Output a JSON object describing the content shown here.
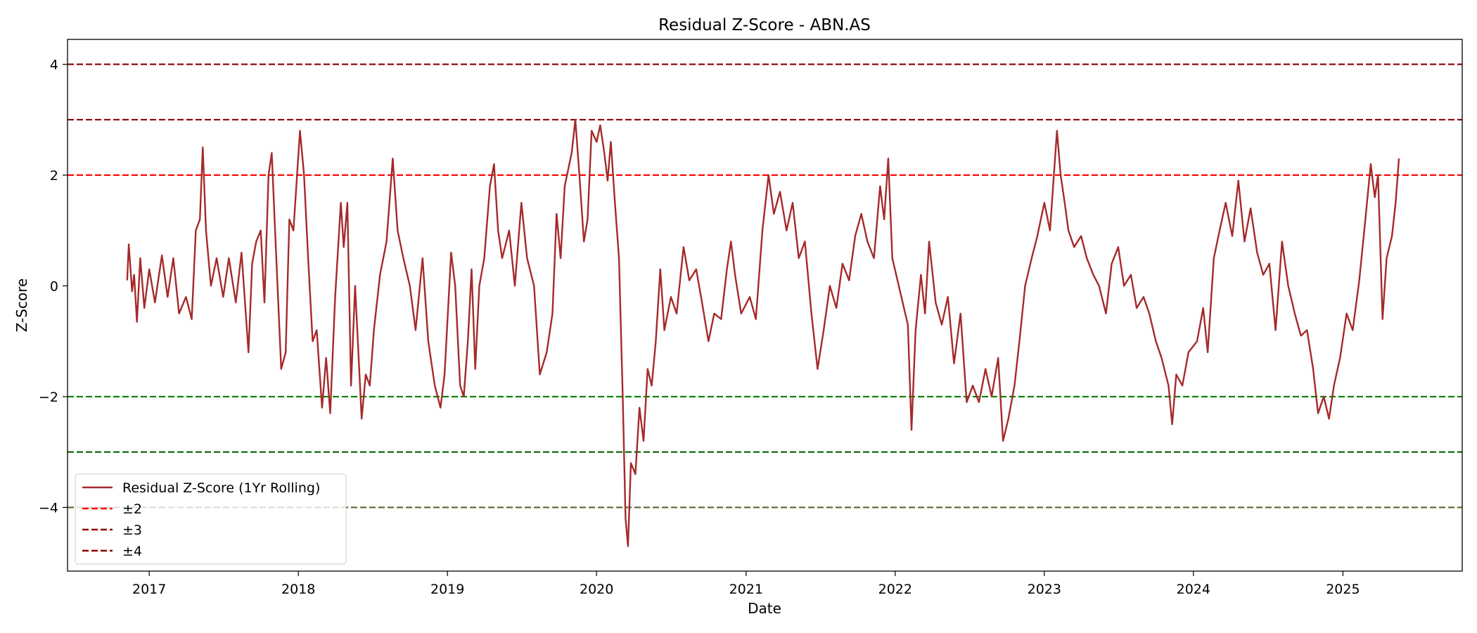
{
  "chart_data": {
    "type": "line",
    "title": "Residual Z-Score - ABN.AS",
    "xlabel": "Date",
    "ylabel": "Z-Score",
    "xlim": [
      "2016-06-15",
      "2025-10-20"
    ],
    "ylim": [
      -5.15,
      4.45
    ],
    "xticks": [
      {
        "date": "2017-01-01",
        "label": "2017"
      },
      {
        "date": "2018-01-01",
        "label": "2018"
      },
      {
        "date": "2019-01-01",
        "label": "2019"
      },
      {
        "date": "2020-01-01",
        "label": "2020"
      },
      {
        "date": "2021-01-01",
        "label": "2021"
      },
      {
        "date": "2022-01-01",
        "label": "2022"
      },
      {
        "date": "2023-01-01",
        "label": "2023"
      },
      {
        "date": "2024-01-01",
        "label": "2024"
      },
      {
        "date": "2025-01-01",
        "label": "2025"
      }
    ],
    "yticks": [
      {
        "value": 4,
        "label": "4"
      },
      {
        "value": 2,
        "label": "2"
      },
      {
        "value": 0,
        "label": "0"
      },
      {
        "value": -2,
        "label": "−2"
      },
      {
        "value": -4,
        "label": "−4"
      }
    ],
    "grid": false,
    "legend_placement": "lower left",
    "reference_lines": [
      {
        "y": 4,
        "color": "#8b0000"
      },
      {
        "y": 3,
        "color": "#8b0000"
      },
      {
        "y": 2,
        "color": "#ff0000"
      },
      {
        "y": -2,
        "color": "#008000"
      },
      {
        "y": -3,
        "color": "#006400"
      },
      {
        "y": -4,
        "color": "#556b2f"
      }
    ],
    "legend": [
      {
        "label": "Residual Z-Score (1Yr Rolling)",
        "color": "#a52a2a",
        "style": "solid"
      },
      {
        "label": "±2",
        "color": "#ff0000",
        "style": "dashed"
      },
      {
        "label": "±3",
        "color": "#8b0000",
        "style": "dashed"
      },
      {
        "label": "±4",
        "color": "#8b0000",
        "style": "dashed"
      }
    ],
    "series": [
      {
        "name": "Residual Z-Score (1Yr Rolling)",
        "color": "#a52a2a",
        "points": [
          [
            "2016-11-08",
            0.1
          ],
          [
            "2016-11-12",
            0.75
          ],
          [
            "2016-11-20",
            -0.1
          ],
          [
            "2016-11-25",
            0.2
          ],
          [
            "2016-12-02",
            -0.65
          ],
          [
            "2016-12-10",
            0.5
          ],
          [
            "2016-12-20",
            -0.4
          ],
          [
            "2017-01-01",
            0.3
          ],
          [
            "2017-01-15",
            -0.3
          ],
          [
            "2017-02-01",
            0.55
          ],
          [
            "2017-02-15",
            -0.2
          ],
          [
            "2017-03-01",
            0.5
          ],
          [
            "2017-03-15",
            -0.5
          ],
          [
            "2017-04-01",
            -0.2
          ],
          [
            "2017-04-15",
            -0.6
          ],
          [
            "2017-04-25",
            1.0
          ],
          [
            "2017-05-05",
            1.2
          ],
          [
            "2017-05-12",
            2.5
          ],
          [
            "2017-05-20",
            1.0
          ],
          [
            "2017-06-01",
            0.0
          ],
          [
            "2017-06-15",
            0.5
          ],
          [
            "2017-07-01",
            -0.2
          ],
          [
            "2017-07-15",
            0.5
          ],
          [
            "2017-08-01",
            -0.3
          ],
          [
            "2017-08-15",
            0.6
          ],
          [
            "2017-09-01",
            -1.2
          ],
          [
            "2017-09-10",
            0.4
          ],
          [
            "2017-09-20",
            0.8
          ],
          [
            "2017-10-01",
            1.0
          ],
          [
            "2017-10-10",
            -0.3
          ],
          [
            "2017-10-20",
            2.0
          ],
          [
            "2017-10-28",
            2.4
          ],
          [
            "2017-11-05",
            1.0
          ],
          [
            "2017-11-20",
            -1.5
          ],
          [
            "2017-12-01",
            -1.2
          ],
          [
            "2017-12-10",
            1.2
          ],
          [
            "2017-12-20",
            1.0
          ],
          [
            "2018-01-05",
            2.8
          ],
          [
            "2018-01-15",
            2.0
          ],
          [
            "2018-01-25",
            0.5
          ],
          [
            "2018-02-05",
            -1.0
          ],
          [
            "2018-02-15",
            -0.8
          ],
          [
            "2018-02-28",
            -2.2
          ],
          [
            "2018-03-10",
            -1.3
          ],
          [
            "2018-03-20",
            -2.3
          ],
          [
            "2018-04-01",
            -0.2
          ],
          [
            "2018-04-15",
            1.5
          ],
          [
            "2018-04-22",
            0.7
          ],
          [
            "2018-05-01",
            1.5
          ],
          [
            "2018-05-10",
            -1.8
          ],
          [
            "2018-05-20",
            0.0
          ],
          [
            "2018-06-05",
            -2.4
          ],
          [
            "2018-06-15",
            -1.6
          ],
          [
            "2018-06-25",
            -1.8
          ],
          [
            "2018-07-05",
            -0.8
          ],
          [
            "2018-07-20",
            0.2
          ],
          [
            "2018-08-05",
            0.8
          ],
          [
            "2018-08-20",
            2.3
          ],
          [
            "2018-09-01",
            1.0
          ],
          [
            "2018-09-15",
            0.5
          ],
          [
            "2018-10-01",
            0.0
          ],
          [
            "2018-10-15",
            -0.8
          ],
          [
            "2018-11-01",
            0.5
          ],
          [
            "2018-11-15",
            -1.0
          ],
          [
            "2018-12-01",
            -1.8
          ],
          [
            "2018-12-15",
            -2.2
          ],
          [
            "2018-12-25",
            -1.6
          ],
          [
            "2019-01-10",
            0.6
          ],
          [
            "2019-01-20",
            0.0
          ],
          [
            "2019-02-01",
            -1.8
          ],
          [
            "2019-02-10",
            -2.0
          ],
          [
            "2019-02-20",
            -1.0
          ],
          [
            "2019-03-01",
            0.3
          ],
          [
            "2019-03-10",
            -1.5
          ],
          [
            "2019-03-20",
            0.0
          ],
          [
            "2019-04-01",
            0.5
          ],
          [
            "2019-04-15",
            1.8
          ],
          [
            "2019-04-25",
            2.2
          ],
          [
            "2019-05-05",
            1.0
          ],
          [
            "2019-05-15",
            0.5
          ],
          [
            "2019-06-01",
            1.0
          ],
          [
            "2019-06-15",
            0.0
          ],
          [
            "2019-07-01",
            1.5
          ],
          [
            "2019-07-15",
            0.5
          ],
          [
            "2019-08-01",
            0.0
          ],
          [
            "2019-08-15",
            -1.6
          ],
          [
            "2019-09-01",
            -1.2
          ],
          [
            "2019-09-15",
            -0.5
          ],
          [
            "2019-09-25",
            1.3
          ],
          [
            "2019-10-05",
            0.5
          ],
          [
            "2019-10-15",
            1.8
          ],
          [
            "2019-11-01",
            2.4
          ],
          [
            "2019-11-10",
            3.0
          ],
          [
            "2019-11-20",
            2.0
          ],
          [
            "2019-12-01",
            0.8
          ],
          [
            "2019-12-10",
            1.2
          ],
          [
            "2019-12-20",
            2.8
          ],
          [
            "2020-01-01",
            2.6
          ],
          [
            "2020-01-10",
            2.9
          ],
          [
            "2020-01-20",
            2.4
          ],
          [
            "2020-01-28",
            1.9
          ],
          [
            "2020-02-05",
            2.6
          ],
          [
            "2020-02-15",
            1.5
          ],
          [
            "2020-02-25",
            0.5
          ],
          [
            "2020-03-05",
            -2.0
          ],
          [
            "2020-03-12",
            -4.2
          ],
          [
            "2020-03-18",
            -4.7
          ],
          [
            "2020-03-25",
            -3.2
          ],
          [
            "2020-04-05",
            -3.4
          ],
          [
            "2020-04-15",
            -2.2
          ],
          [
            "2020-04-25",
            -2.8
          ],
          [
            "2020-05-05",
            -1.5
          ],
          [
            "2020-05-15",
            -1.8
          ],
          [
            "2020-05-25",
            -1.0
          ],
          [
            "2020-06-05",
            0.3
          ],
          [
            "2020-06-15",
            -0.8
          ],
          [
            "2020-07-01",
            -0.2
          ],
          [
            "2020-07-15",
            -0.5
          ],
          [
            "2020-08-01",
            0.7
          ],
          [
            "2020-08-15",
            0.1
          ],
          [
            "2020-09-01",
            0.3
          ],
          [
            "2020-09-15",
            -0.3
          ],
          [
            "2020-10-01",
            -1.0
          ],
          [
            "2020-10-15",
            -0.5
          ],
          [
            "2020-11-01",
            -0.6
          ],
          [
            "2020-11-15",
            0.3
          ],
          [
            "2020-11-25",
            0.8
          ],
          [
            "2020-12-05",
            0.2
          ],
          [
            "2020-12-20",
            -0.5
          ],
          [
            "2021-01-10",
            -0.2
          ],
          [
            "2021-01-25",
            -0.6
          ],
          [
            "2021-02-10",
            1.0
          ],
          [
            "2021-02-25",
            2.0
          ],
          [
            "2021-03-10",
            1.3
          ],
          [
            "2021-03-25",
            1.7
          ],
          [
            "2021-04-10",
            1.0
          ],
          [
            "2021-04-25",
            1.5
          ],
          [
            "2021-05-10",
            0.5
          ],
          [
            "2021-05-25",
            0.8
          ],
          [
            "2021-06-10",
            -0.5
          ],
          [
            "2021-06-25",
            -1.5
          ],
          [
            "2021-07-10",
            -0.8
          ],
          [
            "2021-07-25",
            0.0
          ],
          [
            "2021-08-10",
            -0.4
          ],
          [
            "2021-08-25",
            0.4
          ],
          [
            "2021-09-10",
            0.1
          ],
          [
            "2021-09-25",
            0.9
          ],
          [
            "2021-10-10",
            1.3
          ],
          [
            "2021-10-25",
            0.8
          ],
          [
            "2021-11-10",
            0.5
          ],
          [
            "2021-11-25",
            1.8
          ],
          [
            "2021-12-05",
            1.2
          ],
          [
            "2021-12-15",
            2.3
          ],
          [
            "2021-12-25",
            0.5
          ],
          [
            "2022-02-01",
            -0.7
          ],
          [
            "2022-02-10",
            -2.6
          ],
          [
            "2022-02-20",
            -0.8
          ],
          [
            "2022-03-05",
            0.2
          ],
          [
            "2022-03-15",
            -0.5
          ],
          [
            "2022-03-25",
            0.8
          ],
          [
            "2022-04-10",
            -0.3
          ],
          [
            "2022-04-25",
            -0.7
          ],
          [
            "2022-05-10",
            -0.2
          ],
          [
            "2022-05-25",
            -1.4
          ],
          [
            "2022-06-10",
            -0.5
          ],
          [
            "2022-06-25",
            -2.1
          ],
          [
            "2022-07-10",
            -1.8
          ],
          [
            "2022-07-25",
            -2.1
          ],
          [
            "2022-08-10",
            -1.5
          ],
          [
            "2022-08-25",
            -2.0
          ],
          [
            "2022-09-10",
            -1.3
          ],
          [
            "2022-09-22",
            -2.8
          ],
          [
            "2022-10-05",
            -2.4
          ],
          [
            "2022-10-20",
            -1.8
          ],
          [
            "2022-11-01",
            -1.0
          ],
          [
            "2022-11-15",
            0.0
          ],
          [
            "2022-12-01",
            0.5
          ],
          [
            "2022-12-15",
            0.9
          ],
          [
            "2023-01-01",
            1.5
          ],
          [
            "2023-01-15",
            1.0
          ],
          [
            "2023-02-01",
            2.8
          ],
          [
            "2023-02-10",
            2.0
          ],
          [
            "2023-02-20",
            1.5
          ],
          [
            "2023-03-01",
            1.0
          ],
          [
            "2023-03-15",
            0.7
          ],
          [
            "2023-04-01",
            0.9
          ],
          [
            "2023-04-15",
            0.5
          ],
          [
            "2023-05-01",
            0.2
          ],
          [
            "2023-05-15",
            0.0
          ],
          [
            "2023-06-01",
            -0.5
          ],
          [
            "2023-06-15",
            0.4
          ],
          [
            "2023-07-01",
            0.7
          ],
          [
            "2023-07-15",
            0.0
          ],
          [
            "2023-08-01",
            0.2
          ],
          [
            "2023-08-15",
            -0.4
          ],
          [
            "2023-09-01",
            -0.2
          ],
          [
            "2023-09-15",
            -0.5
          ],
          [
            "2023-10-01",
            -1.0
          ],
          [
            "2023-10-15",
            -1.3
          ],
          [
            "2023-11-01",
            -1.8
          ],
          [
            "2023-11-10",
            -2.5
          ],
          [
            "2023-11-20",
            -1.6
          ],
          [
            "2023-12-05",
            -1.8
          ],
          [
            "2023-12-20",
            -1.2
          ],
          [
            "2024-01-10",
            -1.0
          ],
          [
            "2024-01-25",
            -0.4
          ],
          [
            "2024-02-05",
            -1.2
          ],
          [
            "2024-02-20",
            0.5
          ],
          [
            "2024-03-05",
            1.0
          ],
          [
            "2024-03-20",
            1.5
          ],
          [
            "2024-04-05",
            0.9
          ],
          [
            "2024-04-20",
            1.9
          ],
          [
            "2024-05-05",
            0.8
          ],
          [
            "2024-05-20",
            1.4
          ],
          [
            "2024-06-05",
            0.6
          ],
          [
            "2024-06-20",
            0.2
          ],
          [
            "2024-07-05",
            0.4
          ],
          [
            "2024-07-20",
            -0.8
          ],
          [
            "2024-08-05",
            0.8
          ],
          [
            "2024-08-20",
            0.0
          ],
          [
            "2024-09-05",
            -0.5
          ],
          [
            "2024-09-20",
            -0.9
          ],
          [
            "2024-10-05",
            -0.8
          ],
          [
            "2024-10-20",
            -1.5
          ],
          [
            "2024-11-01",
            -2.3
          ],
          [
            "2024-11-15",
            -2.0
          ],
          [
            "2024-11-28",
            -2.4
          ],
          [
            "2024-12-10",
            -1.8
          ],
          [
            "2024-12-25",
            -1.3
          ],
          [
            "2025-01-10",
            -0.5
          ],
          [
            "2025-01-25",
            -0.8
          ],
          [
            "2025-02-10",
            0.1
          ],
          [
            "2025-02-25",
            1.2
          ],
          [
            "2025-03-10",
            2.2
          ],
          [
            "2025-03-20",
            1.6
          ],
          [
            "2025-03-28",
            2.0
          ],
          [
            "2025-04-08",
            -0.6
          ],
          [
            "2025-04-18",
            0.5
          ],
          [
            "2025-05-01",
            0.9
          ],
          [
            "2025-05-10",
            1.5
          ],
          [
            "2025-05-18",
            2.3
          ]
        ]
      }
    ]
  }
}
